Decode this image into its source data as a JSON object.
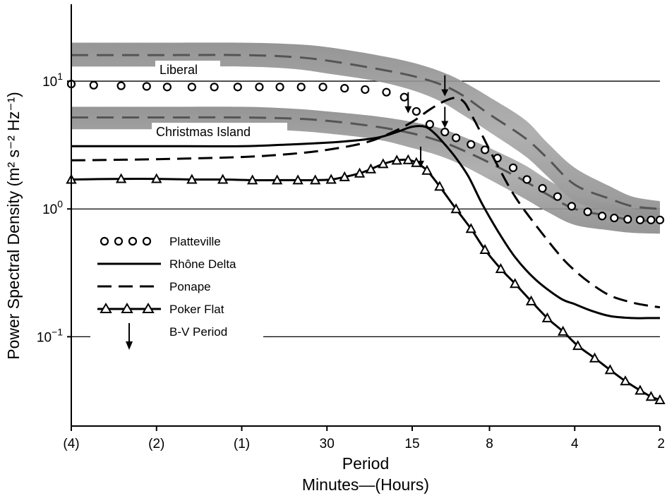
{
  "chart_data": {
    "type": "line",
    "yscale": "log",
    "ylim": [
      0.02,
      40
    ],
    "grid": "horizontal at decades",
    "ylabel": "Power Spectral Density (m² s⁻² Hz⁻¹)",
    "xlabel_line1": "Period",
    "xlabel_line2": "Minutes—(Hours)",
    "x_ticks": [
      "(4)",
      "(2)",
      "(1)",
      "30",
      "15",
      "8",
      "4",
      "2"
    ],
    "y_ticks": [
      {
        "value": 10,
        "base": "10",
        "exp": "1"
      },
      {
        "value": 1,
        "base": "10",
        "exp": "0"
      },
      {
        "value": 0.1,
        "base": "10",
        "exp": "−1"
      }
    ],
    "x_unit": "minutes",
    "x_tick_values": [
      240,
      120,
      60,
      30,
      15,
      8,
      4,
      2
    ],
    "bands": [
      {
        "name": "Liberal",
        "x": [
          240,
          120,
          60,
          40,
          30,
          20,
          15,
          12,
          10,
          8,
          6,
          5,
          4,
          3,
          2.5,
          2
        ],
        "lower": [
          13,
          13,
          13,
          12.5,
          11.5,
          10,
          8.5,
          7,
          5.5,
          4,
          2.6,
          1.8,
          1.15,
          0.95,
          0.85,
          0.8
        ],
        "upper": [
          20,
          20,
          20,
          19.5,
          18.5,
          16,
          14,
          12,
          10,
          7.5,
          5,
          3.3,
          2.1,
          1.5,
          1.25,
          1.15
        ],
        "center": [
          16,
          16,
          16,
          15.5,
          14.5,
          12.5,
          11,
          9.5,
          7.8,
          5.5,
          3.6,
          2.5,
          1.55,
          1.2,
          1.05,
          1.0
        ]
      },
      {
        "name": "Christmas Island",
        "x": [
          240,
          120,
          60,
          40,
          30,
          20,
          15,
          12,
          10,
          8,
          6,
          5,
          4,
          3,
          2.5,
          2
        ],
        "lower": [
          4.2,
          4.2,
          4.2,
          4.1,
          3.9,
          3.5,
          3.0,
          2.6,
          2.2,
          1.7,
          1.2,
          0.95,
          0.75,
          0.68,
          0.65,
          0.64
        ],
        "upper": [
          6.3,
          6.3,
          6.3,
          6.1,
          5.8,
          5.3,
          4.8,
          4.3,
          3.7,
          3.0,
          2.2,
          1.7,
          1.3,
          1.1,
          1.0,
          0.98
        ],
        "center": [
          5.2,
          5.2,
          5.2,
          5.1,
          4.9,
          4.4,
          3.9,
          3.4,
          2.9,
          2.3,
          1.65,
          1.3,
          1.0,
          0.88,
          0.82,
          0.8
        ]
      }
    ],
    "series": [
      {
        "name": "Platteville",
        "style": "circles",
        "x": [
          240,
          200,
          160,
          130,
          110,
          90,
          75,
          62,
          52,
          44,
          37,
          31,
          26,
          22,
          18.5,
          16,
          14.5,
          13,
          11.5,
          10.5,
          9.3,
          8.3,
          7.5,
          6.6,
          5.9,
          5.2,
          4.6,
          4.1,
          3.6,
          3.2,
          2.9,
          2.6,
          2.35,
          2.15,
          2.0
        ],
        "y": [
          9.5,
          9.3,
          9.2,
          9.1,
          9.0,
          9.0,
          9.0,
          9.0,
          9.0,
          9.0,
          9.0,
          9.0,
          8.8,
          8.6,
          8.2,
          7.5,
          5.8,
          4.6,
          4.0,
          3.6,
          3.2,
          2.9,
          2.5,
          2.1,
          1.7,
          1.45,
          1.25,
          1.05,
          0.95,
          0.88,
          0.85,
          0.83,
          0.82,
          0.82,
          0.82
        ]
      },
      {
        "name": "Rhône Delta",
        "style": "solid",
        "x": [
          240,
          120,
          60,
          40,
          30,
          25,
          20,
          17,
          15,
          13.5,
          12.5,
          11.5,
          10.5,
          9.5,
          8.5,
          7.5,
          6.5,
          5.5,
          4.5,
          4.0,
          3.5,
          3.0,
          2.5,
          2.2,
          2.0
        ],
        "y": [
          3.1,
          3.1,
          3.1,
          3.2,
          3.3,
          3.4,
          3.6,
          4.0,
          4.4,
          4.4,
          3.9,
          3.2,
          2.5,
          1.8,
          1.1,
          0.68,
          0.42,
          0.28,
          0.2,
          0.18,
          0.16,
          0.145,
          0.14,
          0.14,
          0.14
        ]
      },
      {
        "name": "Ponape",
        "style": "dashed",
        "x": [
          240,
          120,
          60,
          40,
          30,
          22,
          18,
          15,
          13,
          11.5,
          10.5,
          9.8,
          9.2,
          8.5,
          7.5,
          6.5,
          5.5,
          4.5,
          4.0,
          3.5,
          3.0,
          2.5,
          2.2,
          2.0
        ],
        "y": [
          2.4,
          2.45,
          2.55,
          2.7,
          2.9,
          3.3,
          3.9,
          4.8,
          6.0,
          7.0,
          7.4,
          6.8,
          5.3,
          3.8,
          2.2,
          1.25,
          0.75,
          0.43,
          0.33,
          0.26,
          0.21,
          0.185,
          0.175,
          0.17
        ]
      },
      {
        "name": "Poker Flat",
        "style": "triangles",
        "x": [
          240,
          160,
          120,
          90,
          70,
          55,
          45,
          38,
          33,
          29,
          26,
          23,
          21,
          19,
          17,
          15.5,
          14.5,
          13.3,
          12,
          10.5,
          9.3,
          8.3,
          7.3,
          6.5,
          5.7,
          5.0,
          4.4,
          3.9,
          3.4,
          3.0,
          2.65,
          2.35,
          2.15,
          2.0
        ],
        "y": [
          1.7,
          1.72,
          1.72,
          1.7,
          1.7,
          1.68,
          1.68,
          1.68,
          1.68,
          1.7,
          1.78,
          1.9,
          2.05,
          2.25,
          2.4,
          2.42,
          2.3,
          2.0,
          1.5,
          1.0,
          0.7,
          0.48,
          0.34,
          0.26,
          0.19,
          0.14,
          0.11,
          0.085,
          0.068,
          0.055,
          0.045,
          0.038,
          0.034,
          0.032
        ]
      }
    ],
    "bv_arrows": [
      {
        "x": 15.5,
        "y_tip": 5.6
      },
      {
        "x": 11.5,
        "y_tip": 7.6
      },
      {
        "x": 11.5,
        "y_tip": 4.3
      },
      {
        "x": 14,
        "y_tip": 2.1
      }
    ],
    "legend": {
      "placement": "left-middle",
      "entries": [
        {
          "label": "Platteville",
          "style": "circles"
        },
        {
          "label": "Rhône Delta",
          "style": "solid"
        },
        {
          "label": "Ponape",
          "style": "dashed"
        },
        {
          "label": "Poker Flat",
          "style": "triangles"
        },
        {
          "label": "B-V Period",
          "style": "arrow"
        }
      ]
    }
  }
}
